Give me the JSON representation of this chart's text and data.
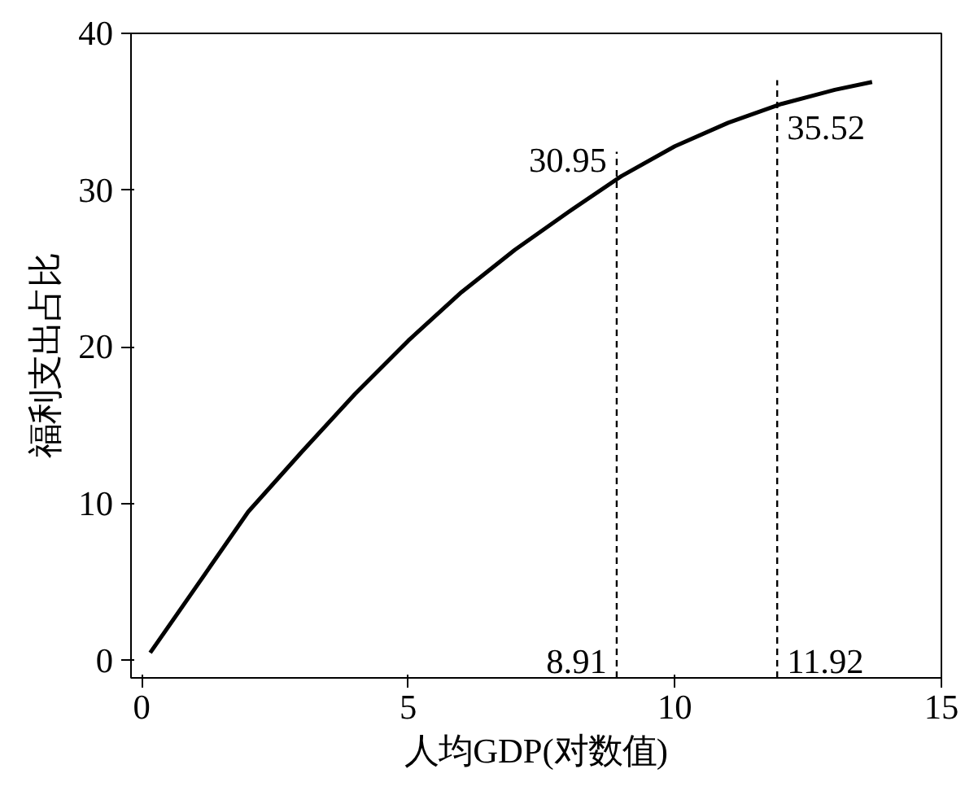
{
  "chart_data": {
    "type": "line",
    "xlabel": "人均GDP(对数值)",
    "ylabel": "福利支出占比",
    "x": [
      0.16,
      1,
      2,
      3,
      4,
      5,
      6,
      7,
      8,
      9,
      10,
      11,
      12,
      13,
      13.7
    ],
    "series": [
      {
        "color": "#000000",
        "values": [
          0.5,
          4.6,
          9.5,
          13.3,
          17.0,
          20.4,
          23.5,
          26.2,
          28.6,
          30.9,
          32.8,
          34.3,
          35.5,
          36.4,
          36.9
        ]
      }
    ],
    "xlim": [
      -0.2,
      15
    ],
    "ylim": [
      -1.1,
      40
    ],
    "xticks": [
      0,
      5,
      10,
      15
    ],
    "yticks": [
      0,
      10,
      20,
      30,
      40
    ],
    "grid": false,
    "marker": "none",
    "line_style": "solid",
    "ref_lines": [
      {
        "axis": "x",
        "value": 8.91,
        "label": "8.91",
        "line_style": "dashed",
        "color": "#000000"
      },
      {
        "axis": "x",
        "value": 11.92,
        "label": "11.92",
        "line_style": "dashed",
        "color": "#000000"
      }
    ],
    "annotations": [
      {
        "text": "30.95",
        "x": 8.91,
        "y": 30.95
      },
      {
        "text": "35.52",
        "x": 11.92,
        "y": 35.52
      }
    ]
  }
}
